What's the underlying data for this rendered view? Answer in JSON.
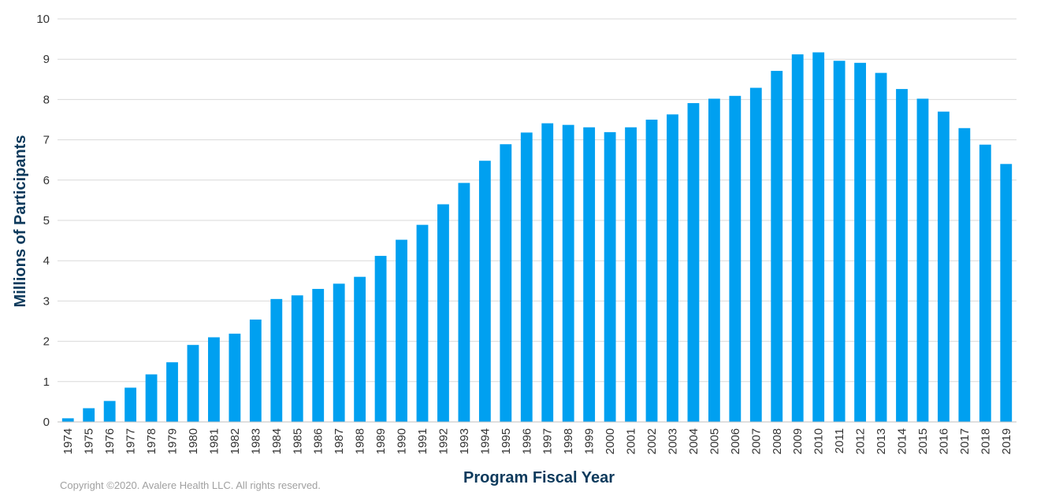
{
  "chart_data": {
    "type": "bar",
    "title": "",
    "xlabel": "Program Fiscal Year",
    "ylabel": "Millions of Participants",
    "ylim": [
      0,
      10
    ],
    "yticks": [
      "0",
      "1",
      "2",
      "3",
      "4",
      "5",
      "6",
      "7",
      "8",
      "9",
      "10"
    ],
    "grid": true,
    "legend": "none",
    "bar_color": "#00a0f0",
    "categories": [
      "1974",
      "1975",
      "1976",
      "1977",
      "1978",
      "1979",
      "1980",
      "1981",
      "1982",
      "1983",
      "1984",
      "1985",
      "1986",
      "1987",
      "1988",
      "1989",
      "1990",
      "1991",
      "1992",
      "1993",
      "1994",
      "1995",
      "1996",
      "1997",
      "1998",
      "1999",
      "2000",
      "2001",
      "2002",
      "2003",
      "2004",
      "2005",
      "2006",
      "2007",
      "2008",
      "2009",
      "2010",
      "2011",
      "2012",
      "2013",
      "2014",
      "2015",
      "2016",
      "2017",
      "2018",
      "2019"
    ],
    "values": [
      0.09,
      0.34,
      0.52,
      0.85,
      1.18,
      1.48,
      1.91,
      2.1,
      2.19,
      2.54,
      3.05,
      3.14,
      3.3,
      3.43,
      3.6,
      4.12,
      4.52,
      4.89,
      5.4,
      5.93,
      6.48,
      6.89,
      7.18,
      7.41,
      7.37,
      7.31,
      7.19,
      7.31,
      7.5,
      7.63,
      7.91,
      8.02,
      8.09,
      8.29,
      8.71,
      9.12,
      9.17,
      8.96,
      8.91,
      8.66,
      8.26,
      8.02,
      7.7,
      7.29,
      6.88,
      6.4
    ]
  },
  "footer": {
    "copyright": "Copyright ©2020. Avalere Health LLC. All rights reserved."
  }
}
